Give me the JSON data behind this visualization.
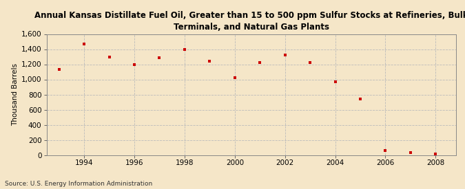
{
  "title": "Annual Kansas Distillate Fuel Oil, Greater than 15 to 500 ppm Sulfur Stocks at Refineries, Bulk\nTerminals, and Natural Gas Plants",
  "ylabel": "Thousand Barrels",
  "source": "Source: U.S. Energy Information Administration",
  "background_color": "#f5e6c8",
  "plot_background_color": "#f5e6c8",
  "marker_color": "#cc0000",
  "marker": "s",
  "marker_size": 3.5,
  "years": [
    1993,
    1994,
    1995,
    1996,
    1997,
    1998,
    1999,
    2000,
    2001,
    2002,
    2003,
    2004,
    2005,
    2006,
    2007,
    2008
  ],
  "values": [
    1130,
    1470,
    1300,
    1200,
    1290,
    1400,
    1240,
    1020,
    1220,
    1320,
    1220,
    970,
    740,
    60,
    35,
    10
  ],
  "xlim": [
    1992.5,
    2008.8
  ],
  "ylim": [
    0,
    1600
  ],
  "yticks": [
    0,
    200,
    400,
    600,
    800,
    1000,
    1200,
    1400,
    1600
  ],
  "xticks": [
    1994,
    1996,
    1998,
    2000,
    2002,
    2004,
    2006,
    2008
  ],
  "grid_color": "#bbbbbb",
  "grid_linestyle": "--",
  "title_fontsize": 8.5,
  "ylabel_fontsize": 7.5,
  "tick_fontsize": 7.5,
  "source_fontsize": 6.5
}
